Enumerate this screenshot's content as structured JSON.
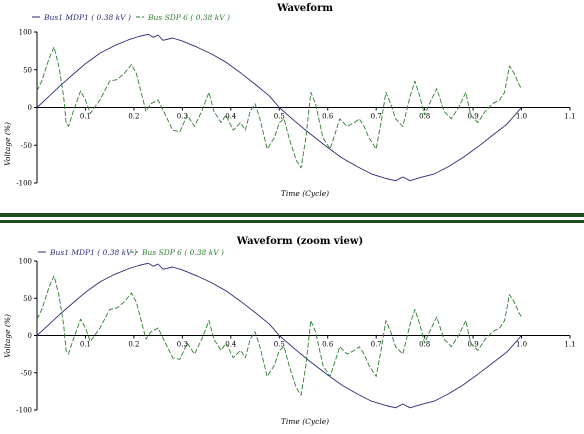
{
  "chart_data": [
    {
      "type": "line",
      "title": "Waveform",
      "xlabel": "Time (Cycle)",
      "ylabel": "Voltage (%)",
      "xlim": [
        0,
        1.1
      ],
      "ylim": [
        -100,
        100
      ],
      "x_ticks": [
        "0.1",
        "0.2",
        "0.3",
        "0.4",
        "0.5",
        "0.6",
        "0.7",
        "0.8",
        "0.9",
        "1.0",
        "1.1"
      ],
      "y_ticks": [
        "100",
        "50",
        "0",
        "-50",
        "-100"
      ],
      "legend_position": "top-left",
      "series": [
        {
          "name": "Bus1 MDP1 ( 0.38 kV )",
          "color": "#2b2b7a",
          "dash": "solid",
          "points": [
            [
              0,
              0
            ],
            [
              0.02,
              12
            ],
            [
              0.05,
              30
            ],
            [
              0.08,
              47
            ],
            [
              0.1,
              58
            ],
            [
              0.13,
              72
            ],
            [
              0.16,
              82
            ],
            [
              0.19,
              90
            ],
            [
              0.21,
              94
            ],
            [
              0.23,
              97
            ],
            [
              0.24,
              93
            ],
            [
              0.25,
              96
            ],
            [
              0.26,
              89
            ],
            [
              0.28,
              92
            ],
            [
              0.3,
              88
            ],
            [
              0.33,
              80
            ],
            [
              0.36,
              71
            ],
            [
              0.39,
              60
            ],
            [
              0.42,
              46
            ],
            [
              0.45,
              31
            ],
            [
              0.48,
              15
            ],
            [
              0.5,
              0
            ],
            [
              0.53,
              -17
            ],
            [
              0.56,
              -33
            ],
            [
              0.6,
              -53
            ],
            [
              0.63,
              -67
            ],
            [
              0.66,
              -78
            ],
            [
              0.69,
              -88
            ],
            [
              0.72,
              -94
            ],
            [
              0.74,
              -97
            ],
            [
              0.755,
              -92
            ],
            [
              0.77,
              -97
            ],
            [
              0.79,
              -93
            ],
            [
              0.82,
              -88
            ],
            [
              0.85,
              -78
            ],
            [
              0.88,
              -66
            ],
            [
              0.91,
              -52
            ],
            [
              0.94,
              -37
            ],
            [
              0.97,
              -22
            ],
            [
              1.0,
              0
            ]
          ]
        },
        {
          "name": "Bus SDP 6 ( 0.38 kV )",
          "color": "#2e7d2e",
          "dash": "dashed",
          "points": [
            [
              0,
              22
            ],
            [
              0.01,
              35
            ],
            [
              0.025,
              65
            ],
            [
              0.035,
              80
            ],
            [
              0.045,
              55
            ],
            [
              0.055,
              15
            ],
            [
              0.06,
              -20
            ],
            [
              0.065,
              -25
            ],
            [
              0.075,
              -5
            ],
            [
              0.09,
              22
            ],
            [
              0.1,
              10
            ],
            [
              0.11,
              -8
            ],
            [
              0.13,
              10
            ],
            [
              0.15,
              35
            ],
            [
              0.165,
              37
            ],
            [
              0.18,
              45
            ],
            [
              0.195,
              57
            ],
            [
              0.205,
              45
            ],
            [
              0.215,
              20
            ],
            [
              0.225,
              -5
            ],
            [
              0.235,
              5
            ],
            [
              0.25,
              10
            ],
            [
              0.265,
              -10
            ],
            [
              0.28,
              -30
            ],
            [
              0.295,
              -32
            ],
            [
              0.31,
              -10
            ],
            [
              0.325,
              -25
            ],
            [
              0.34,
              -5
            ],
            [
              0.355,
              20
            ],
            [
              0.365,
              -5
            ],
            [
              0.38,
              -20
            ],
            [
              0.39,
              -10
            ],
            [
              0.405,
              -30
            ],
            [
              0.42,
              -20
            ],
            [
              0.43,
              -30
            ],
            [
              0.44,
              -5
            ],
            [
              0.45,
              5
            ],
            [
              0.46,
              -15
            ],
            [
              0.475,
              -55
            ],
            [
              0.49,
              -40
            ],
            [
              0.5,
              -20
            ],
            [
              0.51,
              -15
            ],
            [
              0.52,
              -40
            ],
            [
              0.535,
              -70
            ],
            [
              0.545,
              -80
            ],
            [
              0.555,
              -40
            ],
            [
              0.565,
              20
            ],
            [
              0.575,
              5
            ],
            [
              0.59,
              -40
            ],
            [
              0.605,
              -55
            ],
            [
              0.615,
              -35
            ],
            [
              0.625,
              -15
            ],
            [
              0.64,
              -25
            ],
            [
              0.655,
              -20
            ],
            [
              0.665,
              -15
            ],
            [
              0.675,
              -25
            ],
            [
              0.685,
              -40
            ],
            [
              0.7,
              -55
            ],
            [
              0.71,
              -20
            ],
            [
              0.72,
              20
            ],
            [
              0.73,
              5
            ],
            [
              0.74,
              -15
            ],
            [
              0.755,
              -25
            ],
            [
              0.77,
              15
            ],
            [
              0.78,
              35
            ],
            [
              0.79,
              15
            ],
            [
              0.8,
              -10
            ],
            [
              0.81,
              5
            ],
            [
              0.825,
              25
            ],
            [
              0.84,
              -5
            ],
            [
              0.855,
              -15
            ],
            [
              0.87,
              0
            ],
            [
              0.885,
              20
            ],
            [
              0.895,
              -10
            ],
            [
              0.91,
              -20
            ],
            [
              0.925,
              -5
            ],
            [
              0.94,
              5
            ],
            [
              0.955,
              10
            ],
            [
              0.965,
              20
            ],
            [
              0.975,
              55
            ],
            [
              0.985,
              45
            ],
            [
              0.995,
              30
            ],
            [
              1.0,
              25
            ]
          ]
        }
      ]
    },
    {
      "type": "line",
      "title": "Waveform  (zoom view)",
      "xlabel": "Time (Cycle)",
      "ylabel": "Voltage (%)",
      "xlim": [
        0,
        1.1
      ],
      "ylim": [
        -100,
        100
      ],
      "x_ticks": [
        "0.1",
        "0.2",
        "0.3",
        "0.4",
        "0.5",
        "0.6",
        "0.7",
        "0.8",
        "0.9",
        "1.0",
        "1.1"
      ],
      "y_ticks": [
        "100",
        "50",
        "0",
        "-50",
        "-100"
      ],
      "legend_position": "top-left",
      "series": [
        {
          "name": "Bus1 MDP1 ( 0.38 kV )",
          "color": "#2b2b7a",
          "dash": "solid",
          "points": [
            [
              0,
              0
            ],
            [
              0.02,
              12
            ],
            [
              0.05,
              30
            ],
            [
              0.08,
              47
            ],
            [
              0.1,
              58
            ],
            [
              0.13,
              72
            ],
            [
              0.16,
              82
            ],
            [
              0.19,
              90
            ],
            [
              0.21,
              94
            ],
            [
              0.23,
              97
            ],
            [
              0.24,
              93
            ],
            [
              0.25,
              96
            ],
            [
              0.26,
              89
            ],
            [
              0.28,
              92
            ],
            [
              0.3,
              88
            ],
            [
              0.33,
              80
            ],
            [
              0.36,
              71
            ],
            [
              0.39,
              60
            ],
            [
              0.42,
              46
            ],
            [
              0.45,
              31
            ],
            [
              0.48,
              15
            ],
            [
              0.5,
              0
            ],
            [
              0.53,
              -17
            ],
            [
              0.56,
              -33
            ],
            [
              0.6,
              -53
            ],
            [
              0.63,
              -67
            ],
            [
              0.66,
              -78
            ],
            [
              0.69,
              -88
            ],
            [
              0.72,
              -94
            ],
            [
              0.74,
              -97
            ],
            [
              0.755,
              -92
            ],
            [
              0.77,
              -97
            ],
            [
              0.79,
              -93
            ],
            [
              0.82,
              -88
            ],
            [
              0.85,
              -78
            ],
            [
              0.88,
              -66
            ],
            [
              0.91,
              -52
            ],
            [
              0.94,
              -37
            ],
            [
              0.97,
              -22
            ],
            [
              1.0,
              0
            ]
          ]
        },
        {
          "name": "Bus SDP 6 ( 0.38 kV )",
          "color": "#2e7d2e",
          "dash": "dashed",
          "points": [
            [
              0,
              22
            ],
            [
              0.01,
              35
            ],
            [
              0.025,
              65
            ],
            [
              0.035,
              80
            ],
            [
              0.045,
              55
            ],
            [
              0.055,
              15
            ],
            [
              0.06,
              -20
            ],
            [
              0.065,
              -25
            ],
            [
              0.075,
              -5
            ],
            [
              0.09,
              22
            ],
            [
              0.1,
              10
            ],
            [
              0.11,
              -8
            ],
            [
              0.13,
              10
            ],
            [
              0.15,
              35
            ],
            [
              0.165,
              37
            ],
            [
              0.18,
              45
            ],
            [
              0.195,
              57
            ],
            [
              0.205,
              45
            ],
            [
              0.215,
              20
            ],
            [
              0.225,
              -5
            ],
            [
              0.235,
              5
            ],
            [
              0.25,
              10
            ],
            [
              0.265,
              -10
            ],
            [
              0.28,
              -30
            ],
            [
              0.295,
              -32
            ],
            [
              0.31,
              -10
            ],
            [
              0.325,
              -25
            ],
            [
              0.34,
              -5
            ],
            [
              0.355,
              20
            ],
            [
              0.365,
              -5
            ],
            [
              0.38,
              -20
            ],
            [
              0.39,
              -10
            ],
            [
              0.405,
              -30
            ],
            [
              0.42,
              -20
            ],
            [
              0.43,
              -30
            ],
            [
              0.44,
              -5
            ],
            [
              0.45,
              5
            ],
            [
              0.46,
              -15
            ],
            [
              0.475,
              -55
            ],
            [
              0.49,
              -40
            ],
            [
              0.5,
              -20
            ],
            [
              0.51,
              -15
            ],
            [
              0.52,
              -40
            ],
            [
              0.535,
              -70
            ],
            [
              0.545,
              -80
            ],
            [
              0.555,
              -40
            ],
            [
              0.565,
              20
            ],
            [
              0.575,
              5
            ],
            [
              0.59,
              -40
            ],
            [
              0.605,
              -55
            ],
            [
              0.615,
              -35
            ],
            [
              0.625,
              -15
            ],
            [
              0.64,
              -25
            ],
            [
              0.655,
              -20
            ],
            [
              0.665,
              -15
            ],
            [
              0.675,
              -25
            ],
            [
              0.685,
              -40
            ],
            [
              0.7,
              -55
            ],
            [
              0.71,
              -20
            ],
            [
              0.72,
              20
            ],
            [
              0.73,
              5
            ],
            [
              0.74,
              -15
            ],
            [
              0.755,
              -25
            ],
            [
              0.77,
              15
            ],
            [
              0.78,
              35
            ],
            [
              0.79,
              15
            ],
            [
              0.8,
              -10
            ],
            [
              0.81,
              5
            ],
            [
              0.825,
              25
            ],
            [
              0.84,
              -5
            ],
            [
              0.855,
              -15
            ],
            [
              0.87,
              0
            ],
            [
              0.885,
              20
            ],
            [
              0.895,
              -10
            ],
            [
              0.91,
              -20
            ],
            [
              0.925,
              -5
            ],
            [
              0.94,
              5
            ],
            [
              0.955,
              10
            ],
            [
              0.965,
              20
            ],
            [
              0.975,
              55
            ],
            [
              0.985,
              45
            ],
            [
              0.995,
              30
            ],
            [
              1.0,
              25
            ]
          ]
        }
      ]
    }
  ]
}
